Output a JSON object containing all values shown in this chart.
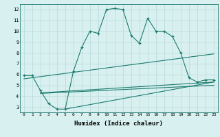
{
  "main_x": [
    0,
    1,
    2,
    3,
    4,
    5,
    6,
    7,
    8,
    9,
    10,
    11,
    12,
    13,
    14,
    15,
    16,
    17,
    18,
    19,
    20,
    21,
    22,
    23
  ],
  "main_y": [
    5.9,
    5.9,
    4.5,
    3.3,
    2.8,
    2.8,
    6.3,
    8.5,
    10.0,
    9.8,
    12.0,
    12.1,
    12.0,
    9.6,
    8.9,
    11.2,
    10.0,
    10.0,
    9.5,
    8.0,
    5.7,
    5.3,
    5.5,
    5.5
  ],
  "line1_x": [
    0,
    23
  ],
  "line1_y": [
    5.6,
    7.9
  ],
  "line2_x": [
    2,
    23
  ],
  "line2_y": [
    4.3,
    5.3
  ],
  "line3_x": [
    2,
    23
  ],
  "line3_y": [
    4.25,
    5.0
  ],
  "line4_x": [
    5,
    23
  ],
  "line4_y": [
    2.8,
    5.3
  ],
  "xlabel": "Humidex (Indice chaleur)",
  "xlim": [
    -0.5,
    23.5
  ],
  "ylim": [
    2.5,
    12.5
  ],
  "yticks": [
    3,
    4,
    5,
    6,
    7,
    8,
    9,
    10,
    11,
    12
  ],
  "xticks": [
    0,
    1,
    2,
    3,
    4,
    5,
    6,
    7,
    8,
    9,
    10,
    11,
    12,
    13,
    14,
    15,
    16,
    17,
    18,
    19,
    20,
    21,
    22,
    23
  ],
  "line_color": "#1a7a6e",
  "bg_color": "#d8f0f0",
  "grid_color": "#b8d8d8"
}
